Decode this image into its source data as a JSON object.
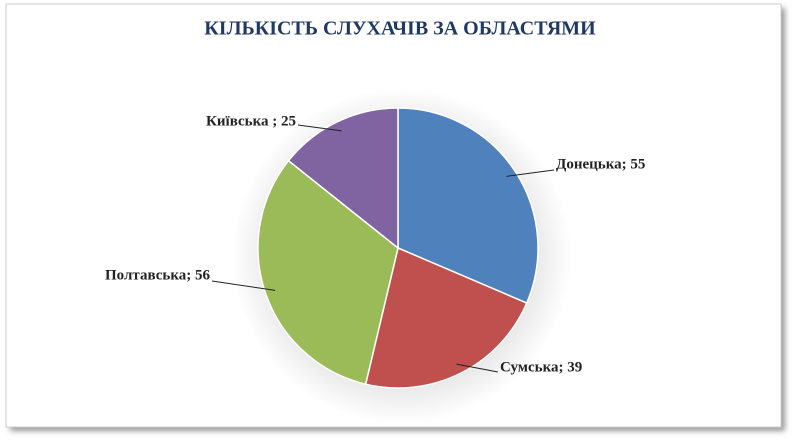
{
  "chart_data": {
    "type": "pie",
    "title": "КІЛЬКІСТЬ СЛУХАЧІВ ЗА ОБЛАСТЯМИ",
    "values": [
      55,
      39,
      56,
      25
    ],
    "value_labels": [
      "Донецька;  55",
      "Сумська;  39",
      "Полтавська;  56",
      "Київська  ; 25"
    ],
    "colors": [
      "#4f81bd",
      "#c0504d",
      "#9bbb59",
      "#8064a2"
    ]
  }
}
